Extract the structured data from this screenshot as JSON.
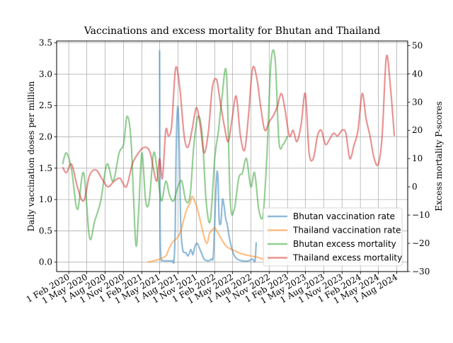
{
  "chart_data": {
    "type": "line",
    "title": "Vaccinations and excess mortality for Bhutan and Thailand",
    "xlabel": "",
    "ylabel_left": "Daily vaccination doses per million",
    "ylabel_right": "Excess mortality P-scores",
    "ylim_left": [
      -0.15,
      3.53
    ],
    "ylim_right": [
      -30,
      51.6
    ],
    "yticks_left": [
      "0.0",
      "0.5",
      "1.0",
      "1.5",
      "2.0",
      "2.5",
      "3.0",
      "3.5"
    ],
    "yticks_right": [
      "−30",
      "−20",
      "−10",
      "0",
      "10",
      "20",
      "30",
      "40",
      "50"
    ],
    "x_ticks": [
      "1 Feb 2020",
      "1 May 2020",
      "1 Aug 2020",
      "1 Nov 2020",
      "1 Feb 2021",
      "1 May 2021",
      "1 Aug 2021",
      "1 Nov 2021",
      "1 Feb 2022",
      "1 May 2022",
      "1 Aug 2022",
      "1 Nov 2022",
      "1 Feb 2023",
      "1 May 2023",
      "1 Aug 2023",
      "1 Nov 2023",
      "1 Feb 2024",
      "1 May 2024",
      "1 Aug 2024"
    ],
    "grid": true,
    "legend_position": "lower-right",
    "series": [
      {
        "name": "Bhutan vaccination rate",
        "axis": "left",
        "color": "#1f77b4",
        "x": [
          "2021-05-01",
          "2021-05-03",
          "2021-05-07",
          "2021-05-15",
          "2021-06-01",
          "2021-06-20",
          "2021-07-05",
          "2021-07-12",
          "2021-07-18",
          "2021-07-22",
          "2021-07-27",
          "2021-08-02",
          "2021-08-08",
          "2021-08-15",
          "2021-08-25",
          "2021-09-10",
          "2021-09-20",
          "2021-09-28",
          "2021-10-03",
          "2021-10-08",
          "2021-10-15",
          "2021-10-25",
          "2021-11-05",
          "2021-11-20",
          "2021-12-10",
          "2022-01-01",
          "2022-01-15",
          "2022-01-25",
          "2022-02-03",
          "2022-02-08",
          "2022-02-13",
          "2022-02-18",
          "2022-02-23",
          "2022-03-01",
          "2022-03-06",
          "2022-03-12",
          "2022-03-20",
          "2022-03-28",
          "2022-04-05",
          "2022-04-15",
          "2022-04-25",
          "2022-05-08",
          "2022-05-25",
          "2022-06-20",
          "2022-07-20",
          "2022-08-10",
          "2022-08-22",
          "2022-08-28"
        ],
        "y": [
          3.38,
          0.8,
          0.1,
          0.03,
          0.02,
          0.02,
          0.02,
          0.02,
          0.5,
          1.6,
          2.3,
          2.45,
          1.8,
          0.6,
          0.2,
          0.15,
          0.1,
          0.15,
          0.2,
          0.18,
          0.12,
          0.25,
          0.3,
          0.2,
          0.05,
          0.02,
          0.05,
          0.1,
          0.8,
          1.2,
          1.45,
          1.3,
          0.7,
          0.6,
          0.7,
          1.0,
          0.9,
          0.7,
          0.6,
          0.4,
          0.25,
          0.12,
          0.05,
          0.02,
          0.02,
          0.05,
          0.02,
          0.32
        ]
      },
      {
        "name": "Thailand vaccination rate",
        "axis": "left",
        "color": "#ff7f0e",
        "x": [
          "2021-03-01",
          "2021-04-01",
          "2021-05-01",
          "2021-06-01",
          "2021-06-15",
          "2021-07-01",
          "2021-07-15",
          "2021-08-01",
          "2021-08-15",
          "2021-09-01",
          "2021-09-15",
          "2021-10-01",
          "2021-10-10",
          "2021-10-20",
          "2021-11-01",
          "2021-11-10",
          "2021-11-25",
          "2021-12-10",
          "2021-12-25",
          "2022-01-05",
          "2022-01-15",
          "2022-02-01",
          "2022-02-10",
          "2022-02-20",
          "2022-03-01",
          "2022-03-10",
          "2022-03-20",
          "2022-04-01",
          "2022-04-15",
          "2022-05-01",
          "2022-05-15",
          "2022-06-01",
          "2022-07-01",
          "2022-08-01",
          "2022-09-01",
          "2022-10-01",
          "2022-11-01"
        ],
        "y": [
          0.0,
          0.02,
          0.05,
          0.1,
          0.2,
          0.3,
          0.35,
          0.4,
          0.5,
          0.7,
          0.85,
          0.95,
          1.05,
          1.0,
          0.9,
          0.8,
          0.6,
          0.4,
          0.3,
          0.45,
          0.5,
          0.55,
          0.5,
          0.45,
          0.4,
          0.35,
          0.3,
          0.25,
          0.22,
          0.2,
          0.18,
          0.15,
          0.12,
          0.1,
          0.08,
          0.05,
          0.03
        ]
      },
      {
        "name": "Bhutan excess mortality",
        "axis": "right",
        "color": "#2ca02c",
        "x": [
          "2020-01-01",
          "2020-01-20",
          "2020-02-15",
          "2020-03-15",
          "2020-04-15",
          "2020-05-15",
          "2020-06-10",
          "2020-07-10",
          "2020-08-10",
          "2020-09-10",
          "2020-10-10",
          "2020-11-01",
          "2020-11-20",
          "2020-12-10",
          "2021-01-01",
          "2021-01-15",
          "2021-02-01",
          "2021-02-20",
          "2021-03-10",
          "2021-04-01",
          "2021-04-20",
          "2021-05-10",
          "2021-06-01",
          "2021-06-20",
          "2021-07-10",
          "2021-08-01",
          "2021-08-20",
          "2021-09-10",
          "2021-10-01",
          "2021-10-20",
          "2021-11-10",
          "2021-12-01",
          "2021-12-20",
          "2022-01-10",
          "2022-02-01",
          "2022-02-20",
          "2022-03-10",
          "2022-04-01",
          "2022-04-20",
          "2022-05-10",
          "2022-06-01",
          "2022-06-20",
          "2022-07-10",
          "2022-08-01",
          "2022-08-20",
          "2022-09-10",
          "2022-10-01",
          "2022-10-20",
          "2022-11-10",
          "2022-12-01",
          "2022-12-20",
          "2023-01-10",
          "2023-02-01"
        ],
        "y": [
          8,
          12,
          6,
          -8,
          5,
          -18,
          -12,
          -5,
          8,
          2,
          12,
          15,
          25,
          15,
          -20,
          -10,
          12,
          -5,
          -5,
          12,
          5,
          -5,
          2,
          -3,
          -5,
          0,
          2,
          -5,
          -3,
          15,
          25,
          18,
          -5,
          -12,
          10,
          20,
          32,
          40,
          -5,
          -8,
          3,
          5,
          10,
          0,
          5,
          -8,
          -10,
          10,
          44,
          45,
          16,
          15,
          18
        ]
      },
      {
        "name": "Thailand excess mortality",
        "axis": "right",
        "color": "#d62728",
        "x": [
          "2020-01-01",
          "2020-01-20",
          "2020-02-15",
          "2020-03-15",
          "2020-04-15",
          "2020-05-15",
          "2020-06-15",
          "2020-07-15",
          "2020-08-15",
          "2020-09-15",
          "2020-10-15",
          "2020-11-15",
          "2020-12-15",
          "2021-01-15",
          "2021-02-15",
          "2021-03-15",
          "2021-04-15",
          "2021-05-01",
          "2021-05-15",
          "2021-06-01",
          "2021-06-15",
          "2021-07-01",
          "2021-07-20",
          "2021-08-10",
          "2021-09-01",
          "2021-09-20",
          "2021-10-10",
          "2021-11-01",
          "2021-11-20",
          "2021-12-10",
          "2022-01-01",
          "2022-01-20",
          "2022-02-10",
          "2022-03-01",
          "2022-03-20",
          "2022-04-10",
          "2022-05-01",
          "2022-05-20",
          "2022-06-10",
          "2022-07-01",
          "2022-07-20",
          "2022-08-10",
          "2022-09-01",
          "2022-09-20",
          "2022-10-10",
          "2022-11-01",
          "2022-11-20",
          "2022-12-10",
          "2023-01-01",
          "2023-01-20",
          "2023-02-10",
          "2023-03-01",
          "2023-03-20",
          "2023-04-10",
          "2023-05-01",
          "2023-05-20",
          "2023-06-10",
          "2023-07-01",
          "2023-07-20",
          "2023-08-10",
          "2023-09-01",
          "2023-09-20",
          "2023-10-10",
          "2023-11-01",
          "2023-11-20",
          "2023-12-10",
          "2024-01-01",
          "2024-01-20",
          "2024-02-10",
          "2024-03-01",
          "2024-03-20",
          "2024-04-10",
          "2024-05-01",
          "2024-05-20",
          "2024-06-10",
          "2024-07-01",
          "2024-07-20"
        ],
        "y": [
          7,
          5,
          8,
          0,
          -5,
          4,
          6,
          3,
          0,
          2,
          3,
          0,
          8,
          12,
          14,
          12,
          2,
          10,
          3,
          20,
          18,
          22,
          42,
          35,
          18,
          14,
          20,
          28,
          22,
          12,
          20,
          35,
          38,
          30,
          22,
          16,
          25,
          32,
          18,
          13,
          25,
          42,
          38,
          28,
          20,
          23,
          25,
          28,
          33,
          27,
          18,
          20,
          16,
          22,
          33,
          12,
          10,
          18,
          20,
          15,
          17,
          19,
          18,
          20,
          19,
          10,
          15,
          20,
          33,
          24,
          18,
          10,
          8,
          18,
          46,
          35,
          18
        ]
      }
    ]
  }
}
